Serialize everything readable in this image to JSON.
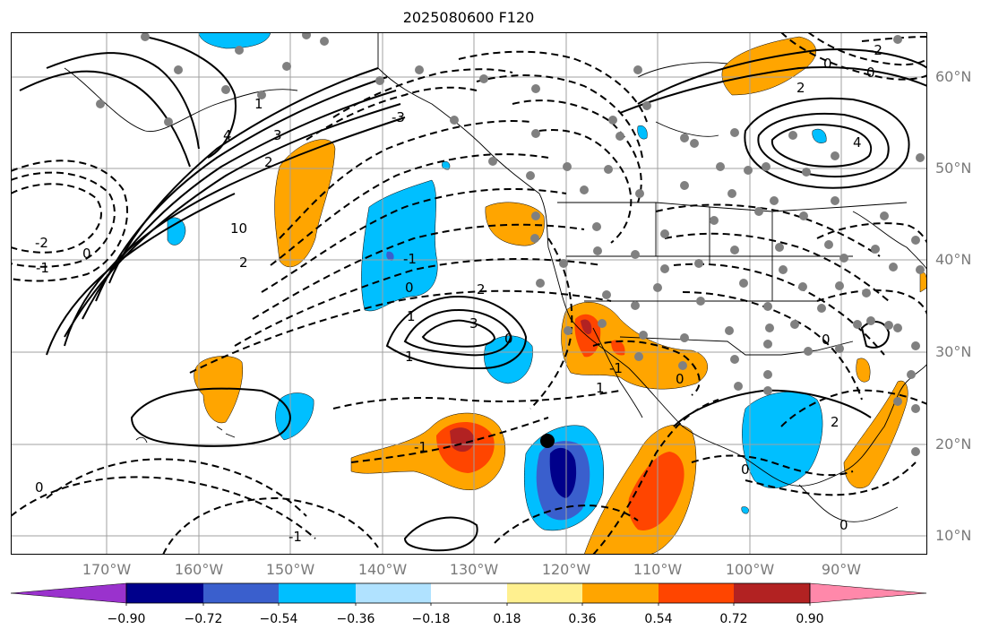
{
  "title": "2025080600 F120",
  "lon_labels": [
    "170°W",
    "160°W",
    "150°W",
    "140°W",
    "130°W",
    "120°W",
    "110°W",
    "100°W",
    "90°W"
  ],
  "lat_labels": [
    "60°N",
    "50°N",
    "40°N",
    "30°N",
    "20°N",
    "10°N"
  ],
  "colorbar": {
    "ticks": [
      "−0.90",
      "−0.72",
      "−0.54",
      "−0.36",
      "−0.18",
      "0.18",
      "0.36",
      "0.54",
      "0.72",
      "0.90"
    ],
    "colors": [
      "#9a32cd",
      "#00008b",
      "#3a5fcd",
      "#00bfff",
      "#b0e2ff",
      "#ffffff",
      "#fff08f",
      "#ffa500",
      "#ff4500",
      "#b22222",
      "#ff88aa"
    ]
  },
  "contour_labels": [
    "1",
    "2",
    "3",
    "4",
    "-1",
    "-2",
    "0",
    "10",
    "2",
    "-3",
    "1",
    "2",
    "3",
    "1",
    "0",
    "-1",
    "0",
    "1",
    "-1",
    "0",
    "2",
    "0",
    "0",
    "0",
    "-1",
    "2",
    "4",
    "0",
    "-2",
    "0",
    "0",
    "-1"
  ],
  "colors": {
    "land_line": "#000000",
    "grid": "#a0a0a0",
    "station": "#808080"
  }
}
